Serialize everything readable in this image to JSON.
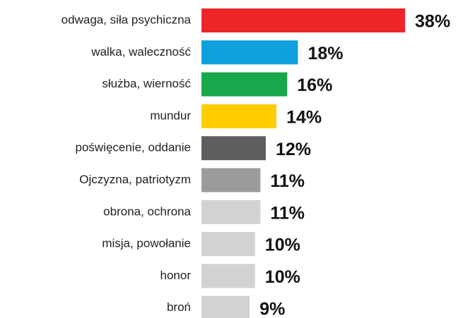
{
  "chart_data": {
    "type": "bar",
    "orientation": "horizontal",
    "categories": [
      "odwaga, siła psychiczna",
      "walka, waleczność",
      "służba, wierność",
      "mundur",
      "poświęcenie, oddanie",
      "Ojczyzna, patriotyzm",
      "obrona, ochrona",
      "misja, powołanie",
      "honor",
      "broń"
    ],
    "values": [
      38,
      18,
      16,
      14,
      12,
      11,
      11,
      10,
      10,
      9
    ],
    "value_labels": [
      "38%",
      "18%",
      "16%",
      "14%",
      "12%",
      "11%",
      "11%",
      "10%",
      "10%",
      "9%"
    ],
    "colors": [
      "#ee2528",
      "#0ea0dc",
      "#17a84b",
      "#ffcc00",
      "#5f5e5e",
      "#9b9b9b",
      "#d1d2d4",
      "#d1d2d4",
      "#d1d2d4",
      "#d1d2d4"
    ]
  }
}
